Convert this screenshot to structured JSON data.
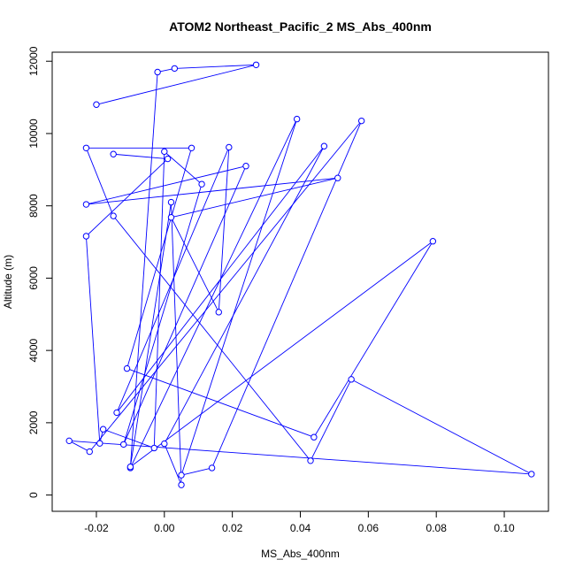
{
  "chart_data": {
    "type": "line",
    "title": "ATOM2 Northeast_Pacific_2 MS_Abs_400nm",
    "xlabel": "MS_Abs_400nm",
    "ylabel": "Altitude (m)",
    "xlim": [
      -0.033,
      0.113
    ],
    "ylim": [
      -450,
      12250
    ],
    "x_ticks": [
      -0.02,
      0.0,
      0.02,
      0.04,
      0.06,
      0.08,
      0.1
    ],
    "x_tick_labels": [
      "-0.02",
      "0.00",
      "0.02",
      "0.04",
      "0.06",
      "0.08",
      "0.10"
    ],
    "y_ticks": [
      0,
      2000,
      4000,
      6000,
      8000,
      10000,
      12000
    ],
    "y_tick_labels": [
      "0",
      "2000",
      "4000",
      "6000",
      "8000",
      "10000",
      "12000"
    ],
    "grid": false,
    "series_color": "#0000ff",
    "x": [
      -0.02,
      0.027,
      0.003,
      -0.002,
      -0.01,
      0.039,
      0.005,
      0.014,
      0.058,
      -0.022,
      -0.028,
      0.108,
      0.055,
      0.043,
      -0.015,
      -0.023,
      0.008,
      -0.011,
      0.044,
      0.079,
      -0.01,
      0.002,
      0.005,
      0.0,
      0.047,
      -0.014,
      0.019,
      0.016,
      0.002,
      0.051,
      -0.023,
      0.024,
      -0.012,
      0.011,
      0.0,
      -0.003,
      -0.018,
      -0.019,
      -0.023,
      0.001,
      -0.015
    ],
    "y": [
      10800,
      11900,
      11800,
      11700,
      750,
      10400,
      550,
      750,
      10350,
      1200,
      1500,
      580,
      3200,
      950,
      7720,
      9600,
      9600,
      3500,
      1600,
      7020,
      780,
      8100,
      280,
      1420,
      9650,
      2280,
      9620,
      5060,
      7680,
      8770,
      8040,
      9100,
      1400,
      8600,
      9500,
      1300,
      1820,
      1430,
      7160,
      9300,
      9430
    ]
  }
}
